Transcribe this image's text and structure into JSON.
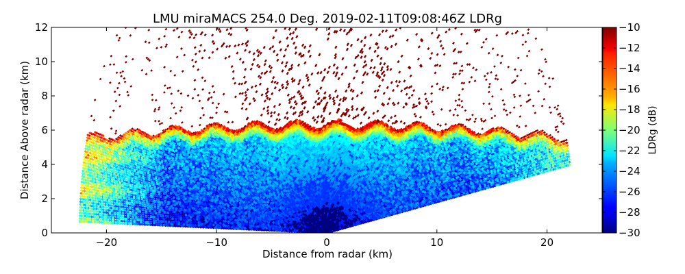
{
  "chart_data": {
    "type": "heatmap",
    "title": "LMU miraMACS 254.0 Deg. 2019-02-11T09:08:46Z  LDRg",
    "xlabel": "Distance from radar (km)",
    "ylabel": "Distance Above radar  (km)",
    "xlim": [
      -25,
      25
    ],
    "ylim": [
      0,
      12
    ],
    "x_ticks": [
      -20,
      -10,
      0,
      10,
      20
    ],
    "x_tick_labels": [
      "−20",
      "−10",
      "0",
      "10",
      "20"
    ],
    "y_ticks": [
      0,
      2,
      4,
      6,
      8,
      10,
      12
    ],
    "y_tick_labels": [
      "0",
      "2",
      "4",
      "6",
      "8",
      "10",
      "12"
    ],
    "scan": {
      "azimuth_deg": 254.0,
      "scan_type": "RHI",
      "min_elevation_left_deg": 1.5,
      "min_elevation_right_deg": 10,
      "max_range_km": 22.5,
      "cloud_top_km": 6.7
    },
    "field": {
      "name": "LDRg",
      "units": "dB",
      "regions": [
        {
          "region": "lower cloud near radar",
          "ldr_db": -28
        },
        {
          "region": "mid cloud",
          "ldr_db": -24
        },
        {
          "region": "left edge layers (x < -15 km)",
          "ldr_db": -19
        },
        {
          "region": "cloud top band (5.8-6.7 km)",
          "ldr_db": -14
        },
        {
          "region": "sparse returns above cloud top",
          "ldr_db": -10
        }
      ]
    },
    "colorbar": {
      "label": "LDRg (dB)",
      "min": -30,
      "max": -10,
      "ticks": [
        -30,
        -28,
        -26,
        -24,
        -22,
        -20,
        -18,
        -16,
        -14,
        -12,
        -10
      ],
      "tick_labels": [
        "−30",
        "−28",
        "−26",
        "−24",
        "−22",
        "−20",
        "−18",
        "−16",
        "−14",
        "−12",
        "−10"
      ],
      "colormap": "jet"
    }
  }
}
